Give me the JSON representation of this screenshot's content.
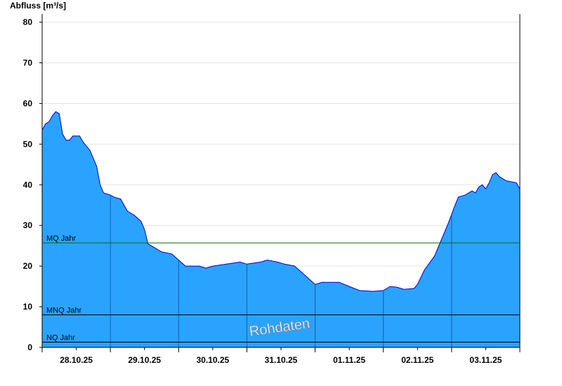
{
  "chart_data": {
    "type": "area",
    "title": "Abfluss [m³/s]",
    "xlabel": "",
    "ylabel": "Abfluss [m³/s]",
    "ylim": [
      0,
      82
    ],
    "yticks": [
      0,
      10,
      20,
      30,
      40,
      50,
      60,
      70,
      80
    ],
    "x_day_labels": [
      "28.10.25",
      "29.10.25",
      "30.10.25",
      "31.10.25",
      "01.11.25",
      "02.11.25",
      "03.11.25"
    ],
    "x_range_days": [
      0,
      7
    ],
    "grid": true,
    "fill_color": "#2aa3ff",
    "line_color": "#0000cc",
    "series": [
      {
        "values": [
          [
            0.0,
            53.5
          ],
          [
            0.05,
            55.0
          ],
          [
            0.1,
            55.5
          ],
          [
            0.15,
            57.0
          ],
          [
            0.2,
            58.0
          ],
          [
            0.25,
            57.5
          ],
          [
            0.3,
            52.5
          ],
          [
            0.35,
            51.0
          ],
          [
            0.4,
            51.0
          ],
          [
            0.45,
            52.0
          ],
          [
            0.55,
            52.0
          ],
          [
            0.6,
            50.5
          ],
          [
            0.7,
            48.5
          ],
          [
            0.8,
            44.5
          ],
          [
            0.85,
            40.0
          ],
          [
            0.9,
            38.0
          ],
          [
            1.0,
            37.5
          ],
          [
            1.05,
            37.0
          ],
          [
            1.15,
            36.5
          ],
          [
            1.25,
            33.5
          ],
          [
            1.35,
            32.5
          ],
          [
            1.45,
            31.0
          ],
          [
            1.5,
            29.0
          ],
          [
            1.55,
            25.5
          ],
          [
            1.65,
            24.5
          ],
          [
            1.75,
            23.5
          ],
          [
            1.9,
            23.0
          ],
          [
            2.0,
            21.5
          ],
          [
            2.1,
            20.0
          ],
          [
            2.3,
            20.0
          ],
          [
            2.4,
            19.5
          ],
          [
            2.5,
            20.0
          ],
          [
            2.7,
            20.5
          ],
          [
            2.9,
            21.0
          ],
          [
            3.0,
            20.5
          ],
          [
            3.2,
            21.0
          ],
          [
            3.3,
            21.5
          ],
          [
            3.45,
            21.0
          ],
          [
            3.55,
            20.5
          ],
          [
            3.7,
            20.0
          ],
          [
            3.8,
            18.5
          ],
          [
            3.9,
            17.0
          ],
          [
            4.0,
            15.5
          ],
          [
            4.1,
            16.0
          ],
          [
            4.35,
            16.0
          ],
          [
            4.5,
            15.0
          ],
          [
            4.65,
            14.0
          ],
          [
            4.85,
            13.8
          ],
          [
            5.0,
            14.0
          ],
          [
            5.1,
            15.0
          ],
          [
            5.2,
            14.8
          ],
          [
            5.3,
            14.3
          ],
          [
            5.45,
            14.5
          ],
          [
            5.5,
            15.5
          ],
          [
            5.6,
            19.0
          ],
          [
            5.75,
            22.5
          ],
          [
            5.85,
            26.5
          ],
          [
            5.95,
            30.5
          ],
          [
            6.05,
            35.0
          ],
          [
            6.1,
            37.0
          ],
          [
            6.2,
            37.5
          ],
          [
            6.3,
            38.5
          ],
          [
            6.35,
            38.0
          ],
          [
            6.4,
            39.5
          ],
          [
            6.45,
            40.0
          ],
          [
            6.5,
            39.0
          ],
          [
            6.55,
            40.5
          ],
          [
            6.6,
            42.5
          ],
          [
            6.65,
            43.0
          ],
          [
            6.7,
            42.0
          ],
          [
            6.75,
            41.5
          ],
          [
            6.8,
            41.0
          ],
          [
            6.95,
            40.5
          ],
          [
            7.0,
            39.0
          ]
        ]
      }
    ],
    "reference_lines": [
      {
        "label": "MQ Jahr",
        "value": 25.7,
        "color": "#007000"
      },
      {
        "label": "MNQ Jahr",
        "value": 8.0,
        "color": "#000000"
      },
      {
        "label": "NQ Jahr",
        "value": 1.3,
        "color": "#000000"
      }
    ],
    "watermark": "Rohdaten"
  }
}
